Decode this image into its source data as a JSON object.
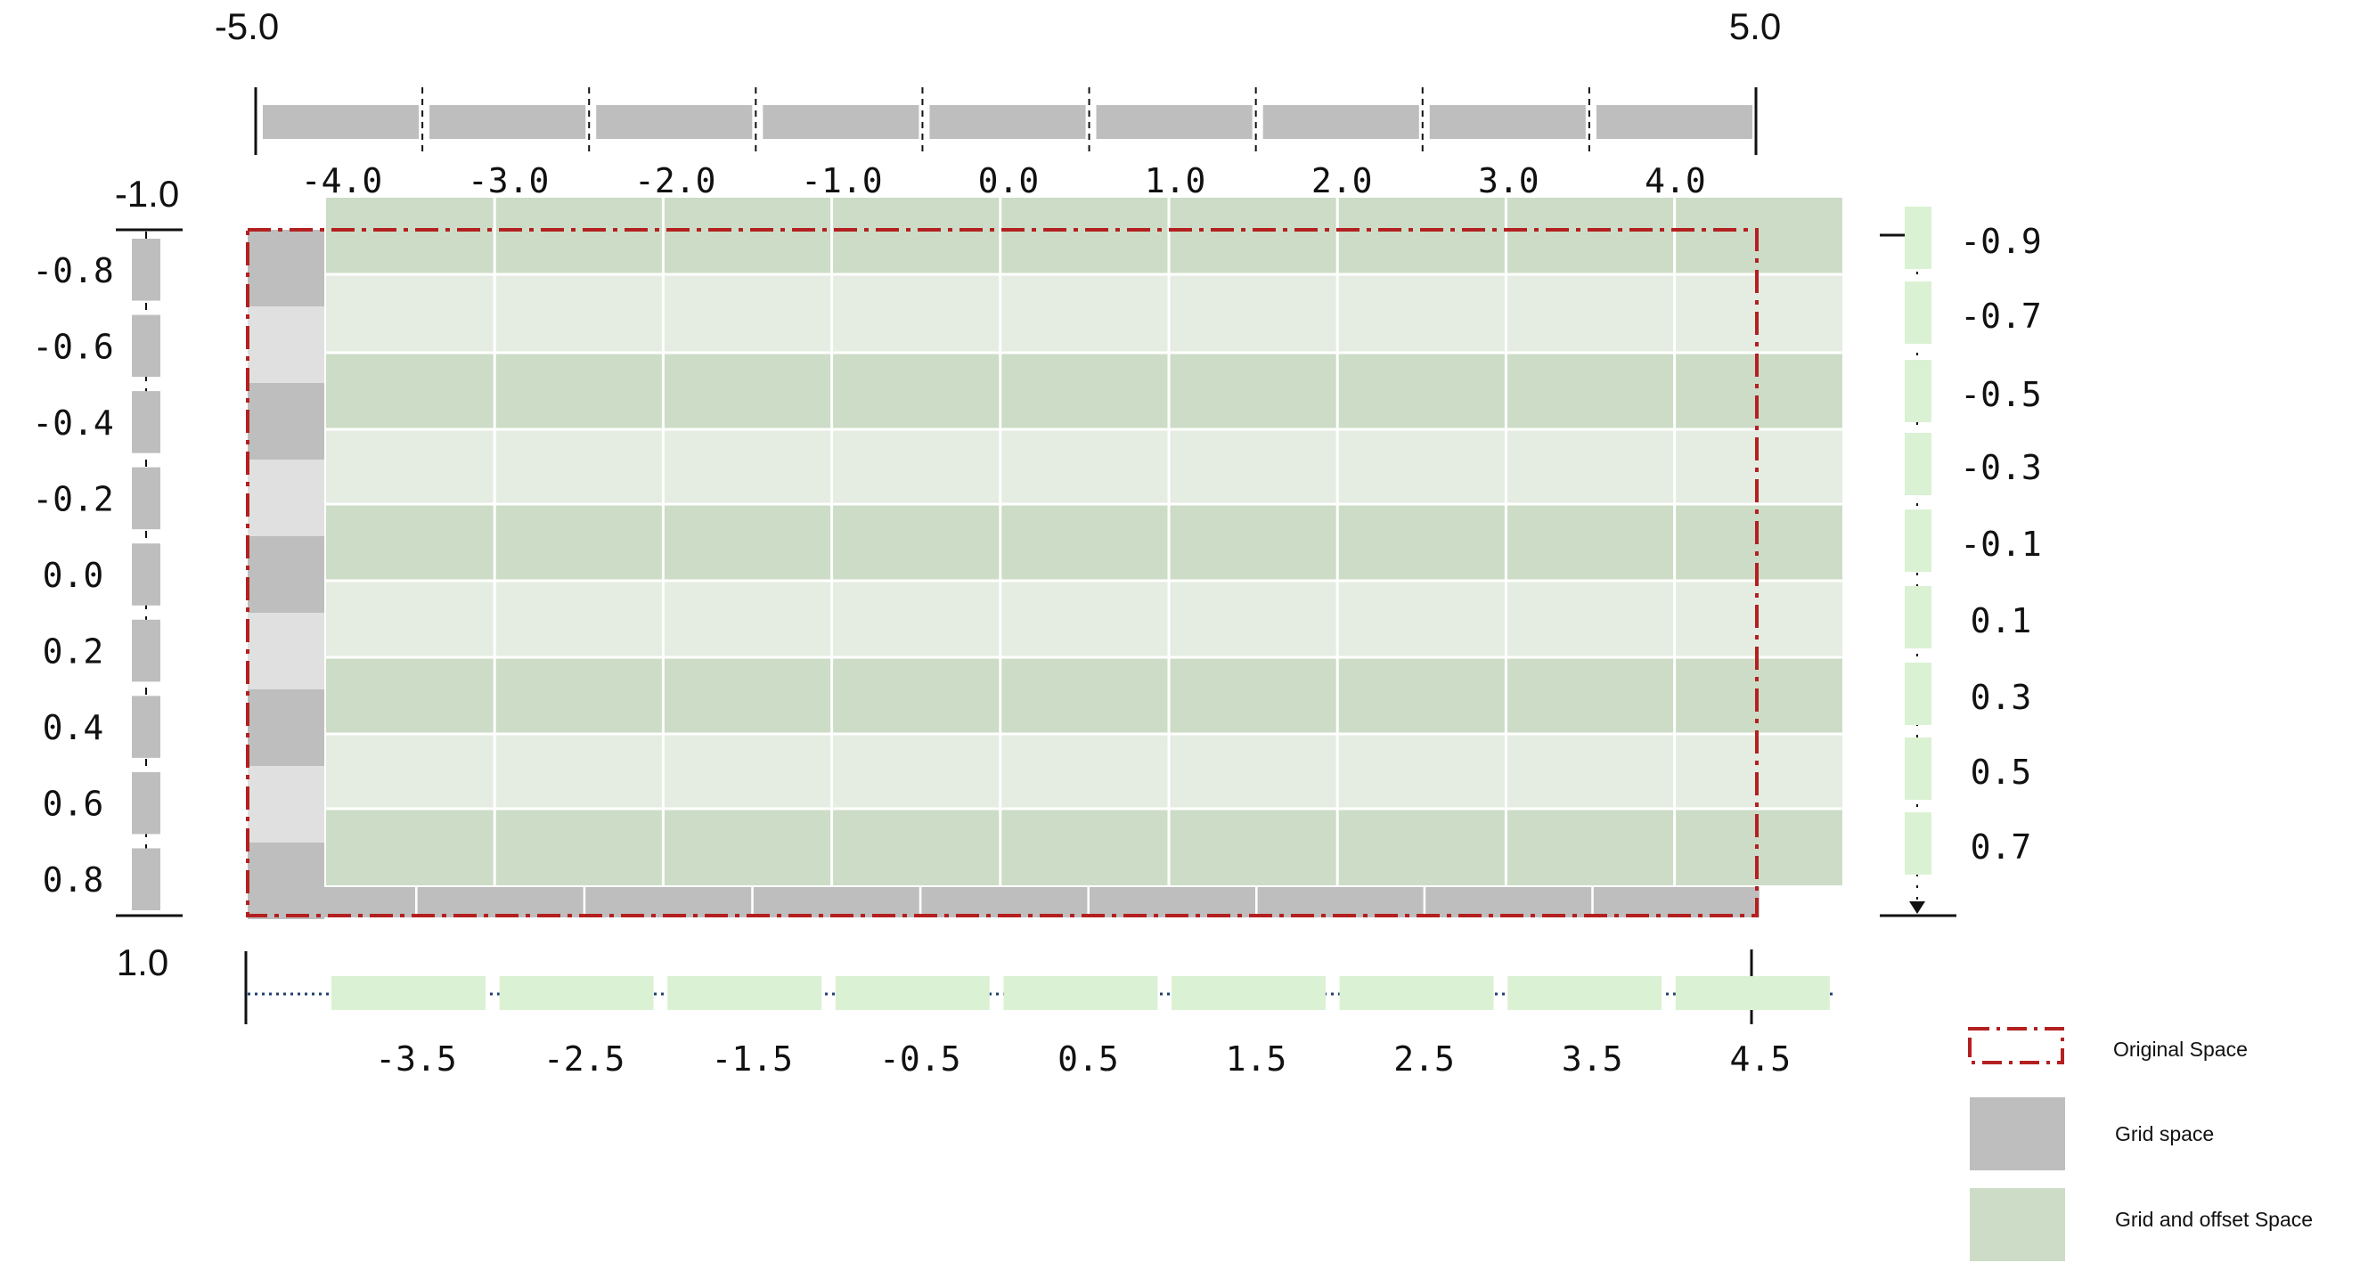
{
  "colors": {
    "grid_gray": "#bebebe",
    "grid_light_gray": "#e0e0e0",
    "offset_green": "#ccdcc6",
    "offset_light_green": "#e5ede2",
    "axis_green": "#daf2d3",
    "original_red": "#b42020",
    "dot_blue": "#1f3f70",
    "cell_line": "#ffffff"
  },
  "top_axis": {
    "min_label": "-5.0",
    "max_label": "5.0",
    "ticks": [
      "-4.0",
      "-3.0",
      "-2.0",
      "-1.0",
      "0.0",
      "1.0",
      "2.0",
      "3.0",
      "4.0"
    ]
  },
  "bottom_axis": {
    "ticks": [
      "-3.5",
      "-2.5",
      "-1.5",
      "-0.5",
      "0.5",
      "1.5",
      "2.5",
      "3.5",
      "4.5"
    ]
  },
  "left_axis": {
    "min_label": "-1.0",
    "max_label": "1.0",
    "ticks": [
      "-0.8",
      "-0.6",
      "-0.4",
      "-0.2",
      "0.0",
      "0.2",
      "0.4",
      "0.6",
      "0.8"
    ]
  },
  "right_axis": {
    "ticks": [
      "-0.9",
      "-0.7",
      "-0.5",
      "-0.3",
      "-0.1",
      "0.1",
      "0.3",
      "0.5",
      "0.7"
    ]
  },
  "legend": {
    "items": [
      {
        "label": "Original Space",
        "swatch": "dashdot-red"
      },
      {
        "label": "Grid space",
        "swatch": "gray"
      },
      {
        "label": "Grid and offset Space",
        "swatch": "green"
      }
    ]
  }
}
